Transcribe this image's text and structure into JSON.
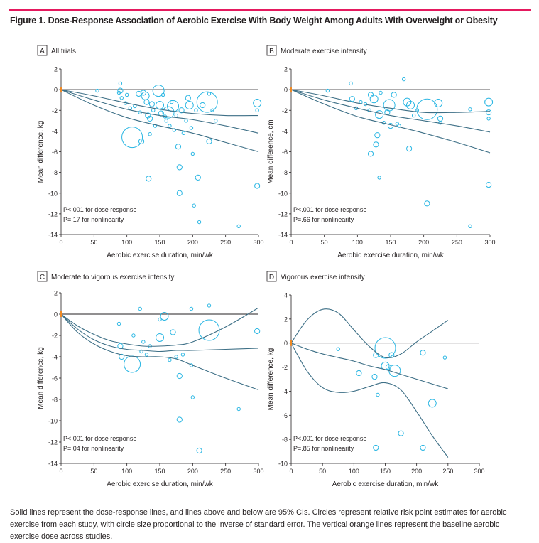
{
  "figure": {
    "title": "Figure 1. Dose-Response Association of Aerobic Exercise With Body Weight Among Adults With Overweight or Obesity",
    "caption": "Solid lines represent the dose-response lines, and lines above and below are 95% CIs. Circles represent relative risk point estimates for aerobic exercise from each study, with circle size proportional to the inverse of standard error. The vertical orange lines represent the baseline aerobic exercise dose across studies.",
    "colors": {
      "accent_bar": "#e5195e",
      "points": "#29b6e3",
      "lines": "#3d6f86",
      "baseline_marker": "#f08a24"
    }
  },
  "chart_data": [
    {
      "type": "scatter",
      "panel_letter": "A",
      "title": "All trials",
      "xlabel": "Aerobic exercise duration, min/wk",
      "ylabel": "Mean difference, kg",
      "xlim": [
        0,
        300
      ],
      "ylim": [
        -14,
        2
      ],
      "xticks": [
        0,
        50,
        100,
        150,
        200,
        250,
        300
      ],
      "yticks": [
        2,
        0,
        -2,
        -4,
        -6,
        -8,
        -10,
        -12,
        -14
      ],
      "annotations": [
        "P<.001 for dose response",
        "P=.17 for nonlinearity"
      ],
      "lines": [
        {
          "role": "estimate",
          "x": [
            0,
            50,
            100,
            150,
            200,
            250,
            300
          ],
          "y": [
            0,
            -1.0,
            -1.9,
            -2.5,
            -2.9,
            -3.5,
            -4.2
          ]
        },
        {
          "role": "ci_upper",
          "x": [
            0,
            50,
            100,
            150,
            200,
            250,
            300
          ],
          "y": [
            0,
            -0.6,
            -1.3,
            -1.9,
            -2.3,
            -2.5,
            -2.5
          ]
        },
        {
          "role": "ci_lower",
          "x": [
            0,
            50,
            100,
            150,
            200,
            250,
            300
          ],
          "y": [
            0,
            -1.5,
            -2.7,
            -3.5,
            -4.2,
            -5.1,
            -6.0
          ]
        }
      ],
      "points": [
        {
          "x": 55,
          "y": -0.1,
          "size": 1
        },
        {
          "x": 88,
          "y": -0.3,
          "size": 1
        },
        {
          "x": 90,
          "y": 0.6,
          "size": 1
        },
        {
          "x": 90,
          "y": -0.1,
          "size": 2
        },
        {
          "x": 92,
          "y": -0.8,
          "size": 1
        },
        {
          "x": 98,
          "y": -1.3,
          "size": 1
        },
        {
          "x": 100,
          "y": -0.5,
          "size": 1
        },
        {
          "x": 105,
          "y": -1.8,
          "size": 1
        },
        {
          "x": 108,
          "y": -4.6,
          "size": 6
        },
        {
          "x": 112,
          "y": -1.6,
          "size": 1
        },
        {
          "x": 118,
          "y": -0.4,
          "size": 2
        },
        {
          "x": 120,
          "y": -2.2,
          "size": 1
        },
        {
          "x": 122,
          "y": -5.0,
          "size": 2
        },
        {
          "x": 125,
          "y": -0.3,
          "size": 2
        },
        {
          "x": 128,
          "y": -0.6,
          "size": 3
        },
        {
          "x": 130,
          "y": -1.2,
          "size": 2
        },
        {
          "x": 132,
          "y": -2.5,
          "size": 2
        },
        {
          "x": 133,
          "y": -8.6,
          "size": 2
        },
        {
          "x": 135,
          "y": -4.3,
          "size": 1
        },
        {
          "x": 135,
          "y": -2.8,
          "size": 2
        },
        {
          "x": 138,
          "y": -1.4,
          "size": 2
        },
        {
          "x": 140,
          "y": -2.0,
          "size": 1
        },
        {
          "x": 143,
          "y": -3.5,
          "size": 1
        },
        {
          "x": 148,
          "y": -0.1,
          "size": 4
        },
        {
          "x": 150,
          "y": -1.5,
          "size": 3
        },
        {
          "x": 152,
          "y": -2.3,
          "size": 2
        },
        {
          "x": 155,
          "y": -0.5,
          "size": 1
        },
        {
          "x": 158,
          "y": -2.6,
          "size": 1
        },
        {
          "x": 160,
          "y": -3.0,
          "size": 1
        },
        {
          "x": 163,
          "y": -2.2,
          "size": 4
        },
        {
          "x": 165,
          "y": -3.5,
          "size": 1
        },
        {
          "x": 168,
          "y": -1.2,
          "size": 1
        },
        {
          "x": 170,
          "y": -1.6,
          "size": 4
        },
        {
          "x": 172,
          "y": -3.9,
          "size": 1
        },
        {
          "x": 175,
          "y": -2.5,
          "size": 1
        },
        {
          "x": 178,
          "y": -5.5,
          "size": 2
        },
        {
          "x": 180,
          "y": -7.5,
          "size": 2
        },
        {
          "x": 180,
          "y": -10.0,
          "size": 2
        },
        {
          "x": 183,
          "y": -2.0,
          "size": 2
        },
        {
          "x": 186,
          "y": -4.2,
          "size": 1
        },
        {
          "x": 190,
          "y": -3.0,
          "size": 1
        },
        {
          "x": 193,
          "y": -0.8,
          "size": 2
        },
        {
          "x": 195,
          "y": -1.5,
          "size": 3
        },
        {
          "x": 198,
          "y": -3.7,
          "size": 1
        },
        {
          "x": 200,
          "y": -6.2,
          "size": 1
        },
        {
          "x": 202,
          "y": -11.2,
          "size": 1
        },
        {
          "x": 205,
          "y": -2.0,
          "size": 1
        },
        {
          "x": 208,
          "y": -8.5,
          "size": 2
        },
        {
          "x": 210,
          "y": -12.8,
          "size": 1
        },
        {
          "x": 215,
          "y": -1.5,
          "size": 2
        },
        {
          "x": 222,
          "y": -1.2,
          "size": 6
        },
        {
          "x": 225,
          "y": -5.0,
          "size": 2
        },
        {
          "x": 225,
          "y": -0.4,
          "size": 1
        },
        {
          "x": 230,
          "y": -2.0,
          "size": 1
        },
        {
          "x": 235,
          "y": -3.0,
          "size": 1
        },
        {
          "x": 270,
          "y": -13.2,
          "size": 1
        },
        {
          "x": 298,
          "y": -9.3,
          "size": 2
        },
        {
          "x": 298,
          "y": -1.3,
          "size": 3
        },
        {
          "x": 298,
          "y": -2.0,
          "size": 1
        }
      ]
    },
    {
      "type": "scatter",
      "panel_letter": "B",
      "title": "Moderate exercise intensity",
      "xlabel": "Aerobic exercise duration, min/wk",
      "ylabel": "Mean difference, cm",
      "xlim": [
        0,
        300
      ],
      "ylim": [
        -14,
        2
      ],
      "xticks": [
        0,
        50,
        100,
        150,
        200,
        250,
        300
      ],
      "yticks": [
        2,
        0,
        -2,
        -4,
        -6,
        -8,
        -10,
        -12,
        -14
      ],
      "annotations": [
        "P<.001 for dose response",
        "P=.66 for nonlinearity"
      ],
      "lines": [
        {
          "role": "estimate",
          "x": [
            0,
            50,
            100,
            150,
            200,
            250,
            300
          ],
          "y": [
            0,
            -1.0,
            -1.8,
            -2.5,
            -3.0,
            -3.5,
            -4.1
          ]
        },
        {
          "role": "ci_upper",
          "x": [
            0,
            50,
            100,
            150,
            200,
            250,
            300
          ],
          "y": [
            0,
            -0.6,
            -1.3,
            -1.8,
            -2.2,
            -2.2,
            -2.1
          ]
        },
        {
          "role": "ci_lower",
          "x": [
            0,
            50,
            100,
            150,
            200,
            250,
            300
          ],
          "y": [
            0,
            -1.4,
            -2.6,
            -3.4,
            -4.2,
            -5.1,
            -6.1
          ]
        }
      ],
      "points": [
        {
          "x": 55,
          "y": -0.1,
          "size": 1
        },
        {
          "x": 90,
          "y": 0.6,
          "size": 1
        },
        {
          "x": 92,
          "y": -0.9,
          "size": 2
        },
        {
          "x": 98,
          "y": -1.8,
          "size": 1
        },
        {
          "x": 105,
          "y": -1.2,
          "size": 1
        },
        {
          "x": 112,
          "y": -1.4,
          "size": 1
        },
        {
          "x": 118,
          "y": -2.0,
          "size": 1
        },
        {
          "x": 120,
          "y": -0.5,
          "size": 2
        },
        {
          "x": 120,
          "y": -6.2,
          "size": 2
        },
        {
          "x": 125,
          "y": -0.9,
          "size": 3
        },
        {
          "x": 128,
          "y": -5.3,
          "size": 2
        },
        {
          "x": 130,
          "y": -4.4,
          "size": 2
        },
        {
          "x": 133,
          "y": -2.4,
          "size": 3
        },
        {
          "x": 133,
          "y": -8.5,
          "size": 1
        },
        {
          "x": 135,
          "y": -0.3,
          "size": 1
        },
        {
          "x": 140,
          "y": -3.2,
          "size": 1
        },
        {
          "x": 145,
          "y": -2.2,
          "size": 2
        },
        {
          "x": 148,
          "y": -1.5,
          "size": 4
        },
        {
          "x": 150,
          "y": -3.5,
          "size": 2
        },
        {
          "x": 155,
          "y": -0.5,
          "size": 2
        },
        {
          "x": 160,
          "y": -3.3,
          "size": 1
        },
        {
          "x": 163,
          "y": -3.5,
          "size": 1
        },
        {
          "x": 170,
          "y": 1.0,
          "size": 1
        },
        {
          "x": 175,
          "y": -1.2,
          "size": 3
        },
        {
          "x": 178,
          "y": -5.7,
          "size": 2
        },
        {
          "x": 180,
          "y": -1.5,
          "size": 3
        },
        {
          "x": 185,
          "y": -2.5,
          "size": 1
        },
        {
          "x": 190,
          "y": -2.0,
          "size": 1
        },
        {
          "x": 205,
          "y": -1.9,
          "size": 6
        },
        {
          "x": 205,
          "y": -11.0,
          "size": 2
        },
        {
          "x": 222,
          "y": -1.3,
          "size": 3
        },
        {
          "x": 225,
          "y": -2.8,
          "size": 2
        },
        {
          "x": 225,
          "y": -3.2,
          "size": 1
        },
        {
          "x": 270,
          "y": -13.2,
          "size": 1
        },
        {
          "x": 270,
          "y": -1.9,
          "size": 1
        },
        {
          "x": 298,
          "y": -1.2,
          "size": 3
        },
        {
          "x": 298,
          "y": -2.2,
          "size": 2
        },
        {
          "x": 298,
          "y": -9.2,
          "size": 2
        },
        {
          "x": 298,
          "y": -2.8,
          "size": 1
        }
      ]
    },
    {
      "type": "scatter",
      "panel_letter": "C",
      "title": "Moderate to vigorous exercise intensity",
      "xlabel": "Aerobic exercise duration, min/wk",
      "ylabel": "Mean difference, kg",
      "xlim": [
        0,
        300
      ],
      "ylim": [
        -14,
        2
      ],
      "xticks": [
        0,
        50,
        100,
        150,
        200,
        250,
        300
      ],
      "yticks": [
        2,
        0,
        -2,
        -4,
        -6,
        -8,
        -10,
        -12,
        -14
      ],
      "annotations": [
        "P<.001 for dose response",
        "P=.04 for nonlinearity"
      ],
      "lines": [
        {
          "role": "estimate",
          "x": [
            0,
            25,
            50,
            75,
            100,
            125,
            150,
            175,
            200,
            250,
            300
          ],
          "y": [
            0,
            -1.4,
            -2.4,
            -3.0,
            -3.3,
            -3.4,
            -3.5,
            -3.4,
            -3.4,
            -3.3,
            -3.2
          ]
        },
        {
          "role": "ci_upper",
          "x": [
            0,
            25,
            50,
            75,
            100,
            125,
            150,
            175,
            200,
            250,
            300
          ],
          "y": [
            0,
            -1.1,
            -1.9,
            -2.5,
            -2.8,
            -3.0,
            -3.0,
            -2.9,
            -2.6,
            -1.2,
            0.6
          ]
        },
        {
          "role": "ci_lower",
          "x": [
            0,
            25,
            50,
            75,
            100,
            125,
            150,
            175,
            200,
            250,
            300
          ],
          "y": [
            0,
            -1.7,
            -2.8,
            -3.5,
            -3.9,
            -4.0,
            -4.0,
            -4.2,
            -4.8,
            -6.0,
            -7.1
          ]
        }
      ],
      "points": [
        {
          "x": 88,
          "y": -0.9,
          "size": 1
        },
        {
          "x": 90,
          "y": -3.0,
          "size": 2
        },
        {
          "x": 92,
          "y": -4.0,
          "size": 2
        },
        {
          "x": 108,
          "y": -4.7,
          "size": 5
        },
        {
          "x": 110,
          "y": -2.0,
          "size": 1
        },
        {
          "x": 120,
          "y": 0.5,
          "size": 1
        },
        {
          "x": 122,
          "y": -3.5,
          "size": 1
        },
        {
          "x": 125,
          "y": -2.6,
          "size": 1
        },
        {
          "x": 130,
          "y": -3.8,
          "size": 1
        },
        {
          "x": 135,
          "y": -3.0,
          "size": 1
        },
        {
          "x": 150,
          "y": -2.2,
          "size": 3
        },
        {
          "x": 150,
          "y": -0.5,
          "size": 1
        },
        {
          "x": 157,
          "y": -0.2,
          "size": 3
        },
        {
          "x": 165,
          "y": -4.3,
          "size": 1
        },
        {
          "x": 170,
          "y": -1.7,
          "size": 2
        },
        {
          "x": 175,
          "y": -4.0,
          "size": 1
        },
        {
          "x": 180,
          "y": -5.8,
          "size": 2
        },
        {
          "x": 180,
          "y": -9.9,
          "size": 2
        },
        {
          "x": 185,
          "y": -3.8,
          "size": 1
        },
        {
          "x": 198,
          "y": -4.8,
          "size": 1
        },
        {
          "x": 198,
          "y": 0.5,
          "size": 1
        },
        {
          "x": 200,
          "y": -7.8,
          "size": 1
        },
        {
          "x": 210,
          "y": -12.8,
          "size": 2
        },
        {
          "x": 225,
          "y": -1.5,
          "size": 6
        },
        {
          "x": 225,
          "y": 0.8,
          "size": 1
        },
        {
          "x": 270,
          "y": -8.9,
          "size": 1
        },
        {
          "x": 298,
          "y": -1.6,
          "size": 2
        }
      ]
    },
    {
      "type": "scatter",
      "panel_letter": "D",
      "title": "Vigorous exercise intensity",
      "xlabel": "Aerobic exercise duration, min/wk",
      "ylabel": "Mean difference, kg",
      "xlim": [
        0,
        300
      ],
      "ylim": [
        -10,
        4
      ],
      "xticks": [
        0,
        50,
        100,
        150,
        200,
        250,
        300
      ],
      "yticks": [
        4,
        2,
        0,
        -2,
        -4,
        -6,
        -8,
        -10
      ],
      "annotations": [
        "P<.001 for dose response",
        "P=.85 for nonlinearity"
      ],
      "lines": [
        {
          "role": "estimate",
          "x": [
            0,
            25,
            50,
            75,
            100,
            125,
            150,
            175,
            200,
            225,
            250
          ],
          "y": [
            0,
            -0.5,
            -0.9,
            -1.2,
            -1.5,
            -1.9,
            -2.2,
            -2.6,
            -3.0,
            -3.4,
            -3.8
          ]
        },
        {
          "role": "ci_upper",
          "x": [
            0,
            25,
            50,
            75,
            100,
            125,
            150,
            175,
            200,
            225,
            250
          ],
          "y": [
            0,
            1.9,
            2.8,
            2.5,
            1.1,
            -0.3,
            -1.2,
            -0.9,
            0.1,
            1.0,
            1.9
          ]
        },
        {
          "role": "ci_lower",
          "x": [
            0,
            25,
            50,
            75,
            100,
            125,
            150,
            175,
            200,
            225,
            250
          ],
          "y": [
            0,
            -2.3,
            -3.7,
            -4.1,
            -4.0,
            -3.6,
            -3.3,
            -3.9,
            -5.7,
            -7.7,
            -9.5
          ]
        }
      ],
      "points": [
        {
          "x": 75,
          "y": -0.5,
          "size": 1
        },
        {
          "x": 108,
          "y": -2.5,
          "size": 2
        },
        {
          "x": 133,
          "y": -2.8,
          "size": 2
        },
        {
          "x": 135,
          "y": -1.0,
          "size": 2
        },
        {
          "x": 138,
          "y": -4.3,
          "size": 1
        },
        {
          "x": 135,
          "y": -8.7,
          "size": 2
        },
        {
          "x": 150,
          "y": -0.4,
          "size": 6
        },
        {
          "x": 150,
          "y": -1.9,
          "size": 3
        },
        {
          "x": 155,
          "y": -2.0,
          "size": 2
        },
        {
          "x": 160,
          "y": -1.0,
          "size": 2
        },
        {
          "x": 165,
          "y": -2.3,
          "size": 4
        },
        {
          "x": 175,
          "y": -7.5,
          "size": 2
        },
        {
          "x": 210,
          "y": -0.8,
          "size": 2
        },
        {
          "x": 210,
          "y": -8.7,
          "size": 2
        },
        {
          "x": 225,
          "y": -5.0,
          "size": 3
        },
        {
          "x": 245,
          "y": -1.2,
          "size": 1
        }
      ]
    }
  ]
}
